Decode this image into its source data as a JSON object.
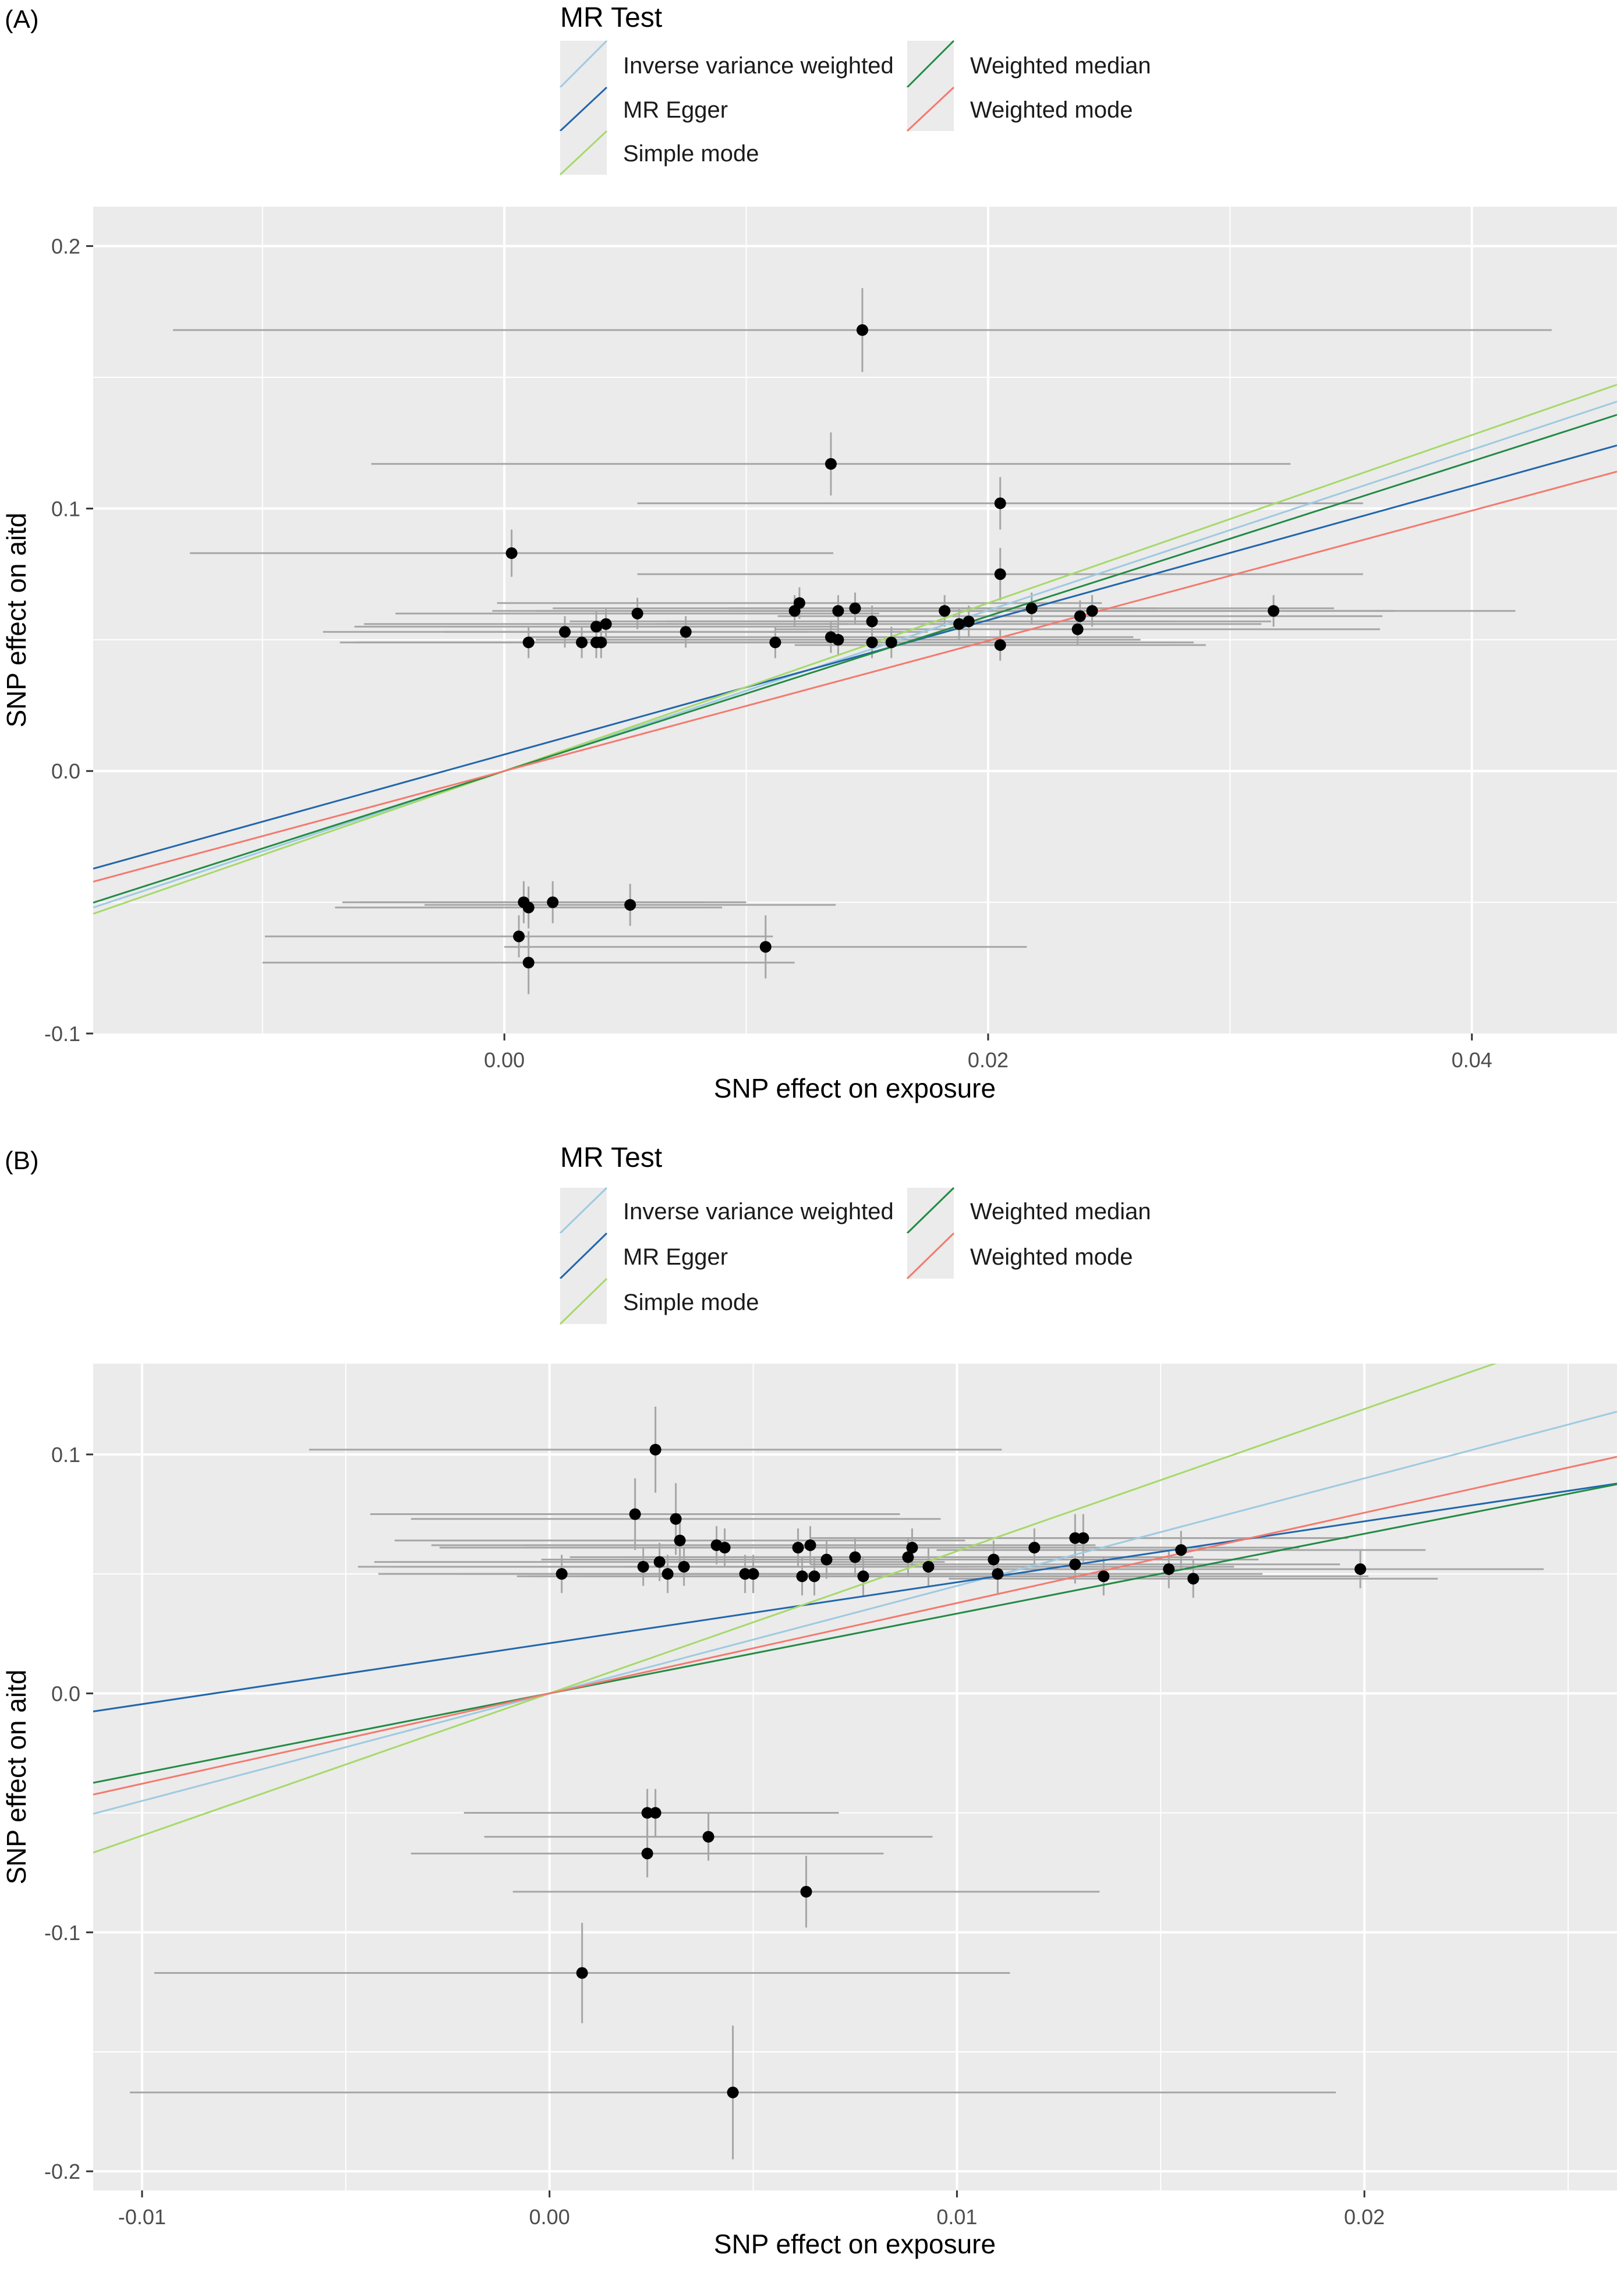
{
  "legend": {
    "title": "MR Test",
    "items": [
      {
        "label": "Inverse variance weighted",
        "color": "#9ecae1"
      },
      {
        "label": "MR Egger",
        "color": "#2166ac"
      },
      {
        "label": "Simple mode",
        "color": "#a6d96a"
      },
      {
        "label": "Weighted median",
        "color": "#238b45"
      },
      {
        "label": "Weighted mode",
        "color": "#f4796f"
      }
    ]
  },
  "chart_data": [
    {
      "type": "scatter",
      "panel": "(A)",
      "xlabel": "SNP effect on exposure",
      "ylabel": "SNP effect on aitd",
      "xlim": [
        -0.017,
        0.046
      ],
      "ylim": [
        -0.1,
        0.215
      ],
      "xticks": [
        0.0,
        0.02,
        0.04
      ],
      "xtick_labels": [
        "0.00",
        "0.02",
        "0.04"
      ],
      "yticks": [
        -0.1,
        0.0,
        0.1,
        0.2
      ],
      "ytick_labels": [
        "-0.1",
        "0.0",
        "0.1",
        "0.2"
      ],
      "grid": true,
      "points": [
        {
          "x": 0.0148,
          "y": 0.168,
          "xerr": 0.0285,
          "yerr": 0.016
        },
        {
          "x": 0.0135,
          "y": 0.117,
          "xerr": 0.019,
          "yerr": 0.012
        },
        {
          "x": 0.0205,
          "y": 0.102,
          "xerr": 0.015,
          "yerr": 0.01
        },
        {
          "x": 0.0003,
          "y": 0.083,
          "xerr": 0.0133,
          "yerr": 0.009
        },
        {
          "x": 0.0205,
          "y": 0.075,
          "xerr": 0.015,
          "yerr": 0.01
        },
        {
          "x": 0.0122,
          "y": 0.064,
          "xerr": 0.0125,
          "yerr": 0.006
        },
        {
          "x": 0.012,
          "y": 0.061,
          "xerr": 0.0125,
          "yerr": 0.006
        },
        {
          "x": 0.0138,
          "y": 0.061,
          "xerr": 0.0125,
          "yerr": 0.006
        },
        {
          "x": 0.0145,
          "y": 0.062,
          "xerr": 0.0125,
          "yerr": 0.006
        },
        {
          "x": 0.0055,
          "y": 0.06,
          "xerr": 0.01,
          "yerr": 0.006
        },
        {
          "x": 0.0182,
          "y": 0.061,
          "xerr": 0.0125,
          "yerr": 0.006
        },
        {
          "x": 0.0218,
          "y": 0.062,
          "xerr": 0.0125,
          "yerr": 0.006
        },
        {
          "x": 0.0243,
          "y": 0.061,
          "xerr": 0.0125,
          "yerr": 0.006
        },
        {
          "x": 0.0318,
          "y": 0.061,
          "xerr": 0.01,
          "yerr": 0.006
        },
        {
          "x": 0.0238,
          "y": 0.059,
          "xerr": 0.0125,
          "yerr": 0.006
        },
        {
          "x": 0.0152,
          "y": 0.057,
          "xerr": 0.0125,
          "yerr": 0.006
        },
        {
          "x": 0.0188,
          "y": 0.056,
          "xerr": 0.0125,
          "yerr": 0.006
        },
        {
          "x": 0.0192,
          "y": 0.057,
          "xerr": 0.0125,
          "yerr": 0.006
        },
        {
          "x": 0.0038,
          "y": 0.055,
          "xerr": 0.01,
          "yerr": 0.006
        },
        {
          "x": 0.0042,
          "y": 0.056,
          "xerr": 0.01,
          "yerr": 0.006
        },
        {
          "x": 0.0237,
          "y": 0.054,
          "xerr": 0.0125,
          "yerr": 0.006
        },
        {
          "x": 0.0025,
          "y": 0.053,
          "xerr": 0.01,
          "yerr": 0.006
        },
        {
          "x": 0.0075,
          "y": 0.053,
          "xerr": 0.01,
          "yerr": 0.006
        },
        {
          "x": 0.0135,
          "y": 0.051,
          "xerr": 0.0125,
          "yerr": 0.006
        },
        {
          "x": 0.0112,
          "y": 0.049,
          "xerr": 0.0125,
          "yerr": 0.006
        },
        {
          "x": 0.0138,
          "y": 0.05,
          "xerr": 0.0125,
          "yerr": 0.006
        },
        {
          "x": 0.0152,
          "y": 0.049,
          "xerr": 0.0125,
          "yerr": 0.006
        },
        {
          "x": 0.016,
          "y": 0.049,
          "xerr": 0.0125,
          "yerr": 0.006
        },
        {
          "x": 0.001,
          "y": 0.049,
          "xerr": 0.007,
          "yerr": 0.006
        },
        {
          "x": 0.0032,
          "y": 0.049,
          "xerr": 0.01,
          "yerr": 0.006
        },
        {
          "x": 0.0038,
          "y": 0.049,
          "xerr": 0.01,
          "yerr": 0.006
        },
        {
          "x": 0.004,
          "y": 0.049,
          "xerr": 0.01,
          "yerr": 0.006
        },
        {
          "x": 0.0205,
          "y": 0.048,
          "xerr": 0.0085,
          "yerr": 0.006
        },
        {
          "x": 0.0008,
          "y": -0.05,
          "xerr": 0.0075,
          "yerr": 0.008
        },
        {
          "x": 0.001,
          "y": -0.052,
          "xerr": 0.008,
          "yerr": 0.008
        },
        {
          "x": 0.002,
          "y": -0.05,
          "xerr": 0.008,
          "yerr": 0.008
        },
        {
          "x": 0.0052,
          "y": -0.051,
          "xerr": 0.0085,
          "yerr": 0.008
        },
        {
          "x": 0.0006,
          "y": -0.063,
          "xerr": 0.0105,
          "yerr": 0.008
        },
        {
          "x": 0.001,
          "y": -0.073,
          "xerr": 0.011,
          "yerr": 0.012
        },
        {
          "x": 0.0108,
          "y": -0.067,
          "xerr": 0.0108,
          "yerr": 0.012
        }
      ],
      "lines": [
        {
          "name": "Inverse variance weighted",
          "slope": 3.06,
          "intercept": 0.0
        },
        {
          "name": "MR Egger",
          "slope": 2.56,
          "intercept": 0.0063
        },
        {
          "name": "Simple mode",
          "slope": 3.2,
          "intercept": 0.0
        },
        {
          "name": "Weighted median",
          "slope": 2.95,
          "intercept": 0.0
        },
        {
          "name": "Weighted mode",
          "slope": 2.48,
          "intercept": 0.0
        }
      ]
    },
    {
      "type": "scatter",
      "panel": "(B)",
      "xlabel": "SNP effect on exposure",
      "ylabel": "SNP effect on aitd",
      "xlim": [
        -0.0112,
        0.0262
      ],
      "ylim": [
        -0.208,
        0.138
      ],
      "xticks": [
        -0.01,
        0.0,
        0.01,
        0.02
      ],
      "xtick_labels": [
        "-0.01",
        "0.00",
        "0.01",
        "0.02"
      ],
      "yticks": [
        -0.2,
        -0.1,
        0.0,
        0.1
      ],
      "ytick_labels": [
        "-0.2",
        "-0.1",
        "0.0",
        "0.1"
      ],
      "grid": true,
      "points": [
        {
          "x": 0.0026,
          "y": 0.102,
          "xerr": 0.0085,
          "yerr": 0.018
        },
        {
          "x": 0.0021,
          "y": 0.075,
          "xerr": 0.0065,
          "yerr": 0.015
        },
        {
          "x": 0.0031,
          "y": 0.073,
          "xerr": 0.0065,
          "yerr": 0.015
        },
        {
          "x": 0.0032,
          "y": 0.064,
          "xerr": 0.007,
          "yerr": 0.01
        },
        {
          "x": 0.0041,
          "y": 0.062,
          "xerr": 0.007,
          "yerr": 0.008
        },
        {
          "x": 0.0043,
          "y": 0.061,
          "xerr": 0.007,
          "yerr": 0.008
        },
        {
          "x": 0.0061,
          "y": 0.061,
          "xerr": 0.007,
          "yerr": 0.008
        },
        {
          "x": 0.0064,
          "y": 0.062,
          "xerr": 0.007,
          "yerr": 0.008
        },
        {
          "x": 0.0068,
          "y": 0.056,
          "xerr": 0.007,
          "yerr": 0.008
        },
        {
          "x": 0.0075,
          "y": 0.057,
          "xerr": 0.007,
          "yerr": 0.008
        },
        {
          "x": 0.0089,
          "y": 0.061,
          "xerr": 0.007,
          "yerr": 0.008
        },
        {
          "x": 0.0088,
          "y": 0.057,
          "xerr": 0.007,
          "yerr": 0.008
        },
        {
          "x": 0.0093,
          "y": 0.053,
          "xerr": 0.0075,
          "yerr": 0.008
        },
        {
          "x": 0.0109,
          "y": 0.056,
          "xerr": 0.0065,
          "yerr": 0.008
        },
        {
          "x": 0.0119,
          "y": 0.061,
          "xerr": 0.0065,
          "yerr": 0.008
        },
        {
          "x": 0.0129,
          "y": 0.065,
          "xerr": 0.0065,
          "yerr": 0.01
        },
        {
          "x": 0.0131,
          "y": 0.065,
          "xerr": 0.0065,
          "yerr": 0.01
        },
        {
          "x": 0.0155,
          "y": 0.06,
          "xerr": 0.006,
          "yerr": 0.008
        },
        {
          "x": 0.0129,
          "y": 0.054,
          "xerr": 0.0065,
          "yerr": 0.008
        },
        {
          "x": 0.0023,
          "y": 0.053,
          "xerr": 0.007,
          "yerr": 0.008
        },
        {
          "x": 0.0027,
          "y": 0.055,
          "xerr": 0.007,
          "yerr": 0.008
        },
        {
          "x": 0.0033,
          "y": 0.053,
          "xerr": 0.007,
          "yerr": 0.008
        },
        {
          "x": 0.0003,
          "y": 0.05,
          "xerr": 0.0045,
          "yerr": 0.008
        },
        {
          "x": 0.0029,
          "y": 0.05,
          "xerr": 0.007,
          "yerr": 0.008
        },
        {
          "x": 0.0048,
          "y": 0.05,
          "xerr": 0.007,
          "yerr": 0.008
        },
        {
          "x": 0.005,
          "y": 0.05,
          "xerr": 0.007,
          "yerr": 0.008
        },
        {
          "x": 0.0062,
          "y": 0.049,
          "xerr": 0.007,
          "yerr": 0.008
        },
        {
          "x": 0.0065,
          "y": 0.049,
          "xerr": 0.007,
          "yerr": 0.008
        },
        {
          "x": 0.0077,
          "y": 0.049,
          "xerr": 0.007,
          "yerr": 0.008
        },
        {
          "x": 0.011,
          "y": 0.05,
          "xerr": 0.0065,
          "yerr": 0.008
        },
        {
          "x": 0.0136,
          "y": 0.049,
          "xerr": 0.0065,
          "yerr": 0.008
        },
        {
          "x": 0.0152,
          "y": 0.052,
          "xerr": 0.006,
          "yerr": 0.008
        },
        {
          "x": 0.0158,
          "y": 0.048,
          "xerr": 0.006,
          "yerr": 0.008
        },
        {
          "x": 0.0199,
          "y": 0.052,
          "xerr": 0.0045,
          "yerr": 0.008
        },
        {
          "x": 0.0024,
          "y": -0.05,
          "xerr": 0.0045,
          "yerr": 0.01
        },
        {
          "x": 0.0026,
          "y": -0.05,
          "xerr": 0.0045,
          "yerr": 0.01
        },
        {
          "x": 0.0039,
          "y": -0.06,
          "xerr": 0.0055,
          "yerr": 0.01
        },
        {
          "x": 0.0024,
          "y": -0.067,
          "xerr": 0.0058,
          "yerr": 0.01
        },
        {
          "x": 0.0063,
          "y": -0.083,
          "xerr": 0.0072,
          "yerr": 0.015
        },
        {
          "x": 0.0008,
          "y": -0.117,
          "xerr": 0.0105,
          "yerr": 0.021
        },
        {
          "x": 0.0045,
          "y": -0.167,
          "xerr": 0.0148,
          "yerr": 0.028
        }
      ],
      "lines": [
        {
          "name": "Inverse variance weighted",
          "slope": 4.5,
          "intercept": 0.0
        },
        {
          "name": "MR Egger",
          "slope": 2.55,
          "intercept": 0.021
        },
        {
          "name": "Simple mode",
          "slope": 5.95,
          "intercept": 0.0
        },
        {
          "name": "Weighted median",
          "slope": 3.34,
          "intercept": 0.0
        },
        {
          "name": "Weighted mode",
          "slope": 3.78,
          "intercept": 0.0
        }
      ]
    }
  ]
}
